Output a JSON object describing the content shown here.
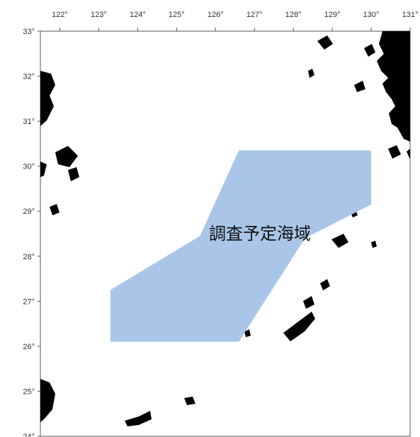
{
  "map": {
    "longitude_labels": [
      "122°",
      "123°",
      "124°",
      "125°",
      "126°",
      "127°",
      "128°",
      "129°",
      "130°",
      "131°"
    ],
    "latitude_labels": [
      "33°",
      "32°",
      "31°",
      "30°",
      "29°",
      "28°",
      "27°",
      "26°",
      "25°",
      "24°"
    ],
    "longitude_range": [
      121.5,
      131.0
    ],
    "latitude_range": [
      24.0,
      33.0
    ],
    "survey_area": {
      "label": "調査予定海域",
      "fill_color": "#a9c6e8",
      "polygon_lonlat": [
        [
          123.3,
          26.1
        ],
        [
          126.6,
          26.1
        ],
        [
          128.3,
          28.4
        ],
        [
          130.0,
          29.15
        ],
        [
          130.0,
          30.35
        ],
        [
          126.6,
          30.35
        ],
        [
          125.6,
          28.45
        ],
        [
          123.3,
          27.25
        ]
      ]
    },
    "land_color": "#000000",
    "frame_color": "#555555"
  }
}
